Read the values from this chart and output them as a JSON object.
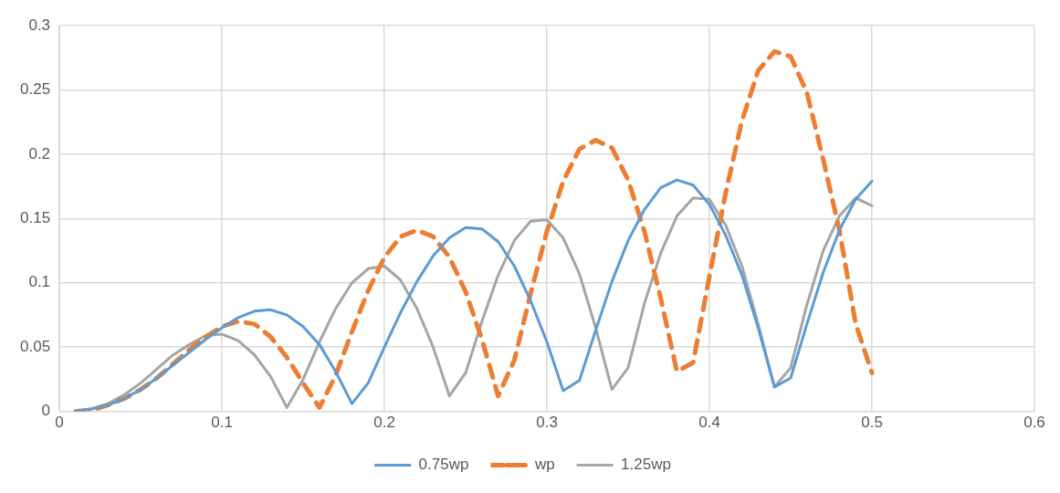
{
  "chart_data": {
    "type": "line",
    "x": [
      0.01,
      0.02,
      0.03,
      0.04,
      0.05,
      0.06,
      0.07,
      0.08,
      0.09,
      0.1,
      0.11,
      0.12,
      0.13,
      0.14,
      0.15,
      0.16,
      0.17,
      0.18,
      0.19,
      0.2,
      0.21,
      0.22,
      0.23,
      0.24,
      0.25,
      0.26,
      0.27,
      0.28,
      0.29,
      0.3,
      0.31,
      0.32,
      0.33,
      0.34,
      0.35,
      0.36,
      0.37,
      0.38,
      0.39,
      0.4,
      0.41,
      0.42,
      0.43,
      0.44,
      0.45,
      0.46,
      0.47,
      0.48,
      0.49,
      0.5
    ],
    "series": [
      {
        "name": "0.75wp",
        "color": "#5b9bd5",
        "line_style": "solid",
        "values": [
          0,
          0.002,
          0.005,
          0.01,
          0.017,
          0.026,
          0.036,
          0.046,
          0.056,
          0.065,
          0.073,
          0.078,
          0.079,
          0.075,
          0.066,
          0.052,
          0.031,
          0.006,
          0.022,
          0.05,
          0.077,
          0.101,
          0.121,
          0.135,
          0.143,
          0.142,
          0.132,
          0.113,
          0.086,
          0.054,
          0.016,
          0.024,
          0.063,
          0.101,
          0.133,
          0.157,
          0.174,
          0.18,
          0.176,
          0.161,
          0.137,
          0.106,
          0.065,
          0.019,
          0.026,
          0.068,
          0.108,
          0.141,
          0.165,
          0.179
        ]
      },
      {
        "name": "wp",
        "color": "#ed7d31",
        "line_style": "dashed",
        "values": [
          0,
          0.001,
          0.005,
          0.01,
          0.017,
          0.026,
          0.037,
          0.048,
          0.058,
          0.066,
          0.07,
          0.068,
          0.058,
          0.042,
          0.022,
          0.003,
          0.028,
          0.062,
          0.094,
          0.12,
          0.136,
          0.141,
          0.136,
          0.12,
          0.093,
          0.056,
          0.012,
          0.04,
          0.092,
          0.14,
          0.179,
          0.204,
          0.211,
          0.205,
          0.18,
          0.14,
          0.088,
          0.031,
          0.038,
          0.105,
          0.17,
          0.226,
          0.265,
          0.28,
          0.276,
          0.248,
          0.196,
          0.141,
          0.068,
          0.03
        ]
      },
      {
        "name": "1.25wp",
        "color": "#a5a5a5",
        "line_style": "solid",
        "values": [
          0,
          0.002,
          0.006,
          0.013,
          0.022,
          0.033,
          0.044,
          0.052,
          0.059,
          0.06,
          0.055,
          0.044,
          0.027,
          0.003,
          0.025,
          0.054,
          0.08,
          0.1,
          0.111,
          0.113,
          0.102,
          0.08,
          0.05,
          0.012,
          0.03,
          0.07,
          0.106,
          0.133,
          0.148,
          0.149,
          0.135,
          0.107,
          0.065,
          0.017,
          0.034,
          0.084,
          0.123,
          0.152,
          0.166,
          0.165,
          0.145,
          0.113,
          0.068,
          0.019,
          0.034,
          0.083,
          0.125,
          0.152,
          0.166,
          0.16
        ]
      }
    ],
    "xlim": [
      0,
      0.6
    ],
    "xticks": [
      0,
      0.1,
      0.2,
      0.3,
      0.4,
      0.5,
      0.6
    ],
    "ylim": [
      0,
      0.3
    ],
    "yticks": [
      0,
      0.05,
      0.1,
      0.15,
      0.2,
      0.25,
      0.3
    ],
    "grid": true,
    "legend": "bottom",
    "marker": "none"
  }
}
